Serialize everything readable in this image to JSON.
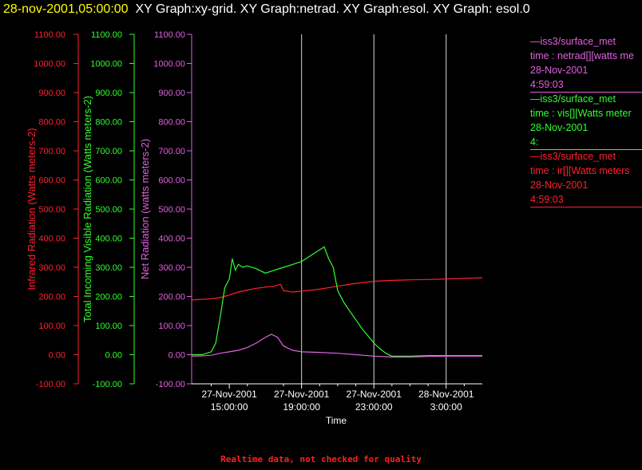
{
  "header": {
    "timestamp": "28-nov-2001,05:00:00",
    "title": "XY Graph:xy-grid.  XY Graph:netrad.  XY Graph:esol.  XY Graph: esol.0"
  },
  "footer_note": "Realtime data, not checked for quality",
  "colors": {
    "infrared": "#ff2030",
    "visible": "#30ff30",
    "net": "#e060e0",
    "grid": "#ffffff",
    "timestamp": "#ffff00"
  },
  "legend": [
    {
      "rule": "—iss3/surface_met",
      "field": "time : netrad[][watts me",
      "date": "28-Nov-2001",
      "time": "4:59:03",
      "color": "#e060e0"
    },
    {
      "rule": "—iss3/surface_met",
      "field": "time : vis[][Watts meter",
      "date": "28-Nov-2001",
      "time": "4:",
      "color": "#30ff30"
    },
    {
      "rule": "—iss3/surface_met",
      "field": "time : ir[][Watts meters",
      "date": "28-Nov-2001",
      "time": "4:59:03",
      "color": "#ff2030"
    }
  ],
  "chart_data": {
    "type": "line",
    "xlabel": "Time",
    "x_ticks": [
      {
        "date": "27-Nov-2001",
        "time": "15:00:00"
      },
      {
        "date": "27-Nov-2001",
        "time": "19:00:00"
      },
      {
        "date": "27-Nov-2001",
        "time": "23:00:00"
      },
      {
        "date": "28-Nov-2001",
        "time": "3:00:00"
      }
    ],
    "x_range": [
      "27-Nov-2001 12:55",
      "28-Nov-2001 05:00"
    ],
    "grid_x": true,
    "axes": [
      {
        "id": "ir",
        "label": "Infrared Radiation (Watts meters-2)",
        "color": "#ff2030",
        "ylim": [
          -100,
          1100
        ],
        "ticks": [
          "-100.00",
          "0.00",
          "100.00",
          "200.00",
          "300.00",
          "400.00",
          "500.00",
          "600.00",
          "700.00",
          "800.00",
          "900.00",
          "1000.00",
          "1100.00"
        ]
      },
      {
        "id": "vis",
        "label": "Total Incoming Visible Radiation (Watts meters-2)",
        "color": "#30ff30",
        "ylim": [
          -100,
          1100
        ],
        "ticks": [
          "-100.00",
          "0.00",
          "100.00",
          "200.00",
          "300.00",
          "400.00",
          "500.00",
          "600.00",
          "700.00",
          "800.00",
          "900.00",
          "1000.00",
          "1100.00"
        ]
      },
      {
        "id": "net",
        "label": "Net Radiation (watts meters-2)",
        "color": "#e060e0",
        "ylim": [
          -100,
          1100
        ],
        "ticks": [
          "-100.00",
          "0.00",
          "100.00",
          "200.00",
          "300.00",
          "400.00",
          "500.00",
          "600.00",
          "700.00",
          "800.00",
          "900.00",
          "1000.00",
          "1100.00"
        ]
      }
    ],
    "series": [
      {
        "axis": "ir",
        "color": "#ff2030",
        "x": [
          "12:55",
          "13:30",
          "14:00",
          "14:30",
          "15:00",
          "15:30",
          "16:00",
          "16:30",
          "17:00",
          "17:30",
          "17:50",
          "18:00",
          "18:30",
          "19:00",
          "20:00",
          "21:00",
          "22:00",
          "23:00",
          "0:00",
          "1:00",
          "2:00",
          "3:00",
          "4:00",
          "5:00"
        ],
        "values": [
          188,
          190,
          192,
          196,
          205,
          215,
          222,
          228,
          232,
          235,
          242,
          220,
          215,
          218,
          225,
          235,
          245,
          252,
          255,
          257,
          258,
          260,
          262,
          264
        ]
      },
      {
        "axis": "vis",
        "color": "#30ff30",
        "x": [
          "12:55",
          "13:30",
          "14:00",
          "14:15",
          "14:30",
          "14:45",
          "15:00",
          "15:10",
          "15:20",
          "15:30",
          "15:45",
          "16:00",
          "16:30",
          "17:00",
          "17:30",
          "18:00",
          "18:30",
          "19:00",
          "19:30",
          "20:00",
          "20:15",
          "20:30",
          "20:45",
          "21:00",
          "21:20",
          "21:40",
          "22:00",
          "22:20",
          "22:40",
          "23:00",
          "23:20",
          "23:40",
          "0:00",
          "0:20",
          "1:00",
          "2:00",
          "3:00",
          "4:00",
          "5:00"
        ],
        "values": [
          0,
          0,
          10,
          40,
          130,
          230,
          260,
          330,
          290,
          310,
          300,
          305,
          295,
          280,
          290,
          300,
          310,
          320,
          340,
          360,
          370,
          330,
          300,
          220,
          180,
          150,
          120,
          90,
          65,
          40,
          20,
          5,
          -5,
          -5,
          -5,
          -3,
          -3,
          -3,
          -3
        ]
      },
      {
        "axis": "net",
        "color": "#e060e0",
        "x": [
          "12:55",
          "13:30",
          "14:00",
          "14:30",
          "15:00",
          "15:30",
          "16:00",
          "16:30",
          "17:00",
          "17:20",
          "17:40",
          "18:00",
          "18:30",
          "19:00",
          "20:00",
          "21:00",
          "22:00",
          "23:00",
          "0:00",
          "1:00",
          "2:00",
          "3:00",
          "4:00",
          "5:00"
        ],
        "values": [
          -5,
          -4,
          -2,
          5,
          10,
          15,
          25,
          40,
          60,
          70,
          60,
          30,
          15,
          10,
          8,
          5,
          0,
          -5,
          -8,
          -8,
          -6,
          -5,
          -5,
          -5
        ]
      }
    ]
  }
}
